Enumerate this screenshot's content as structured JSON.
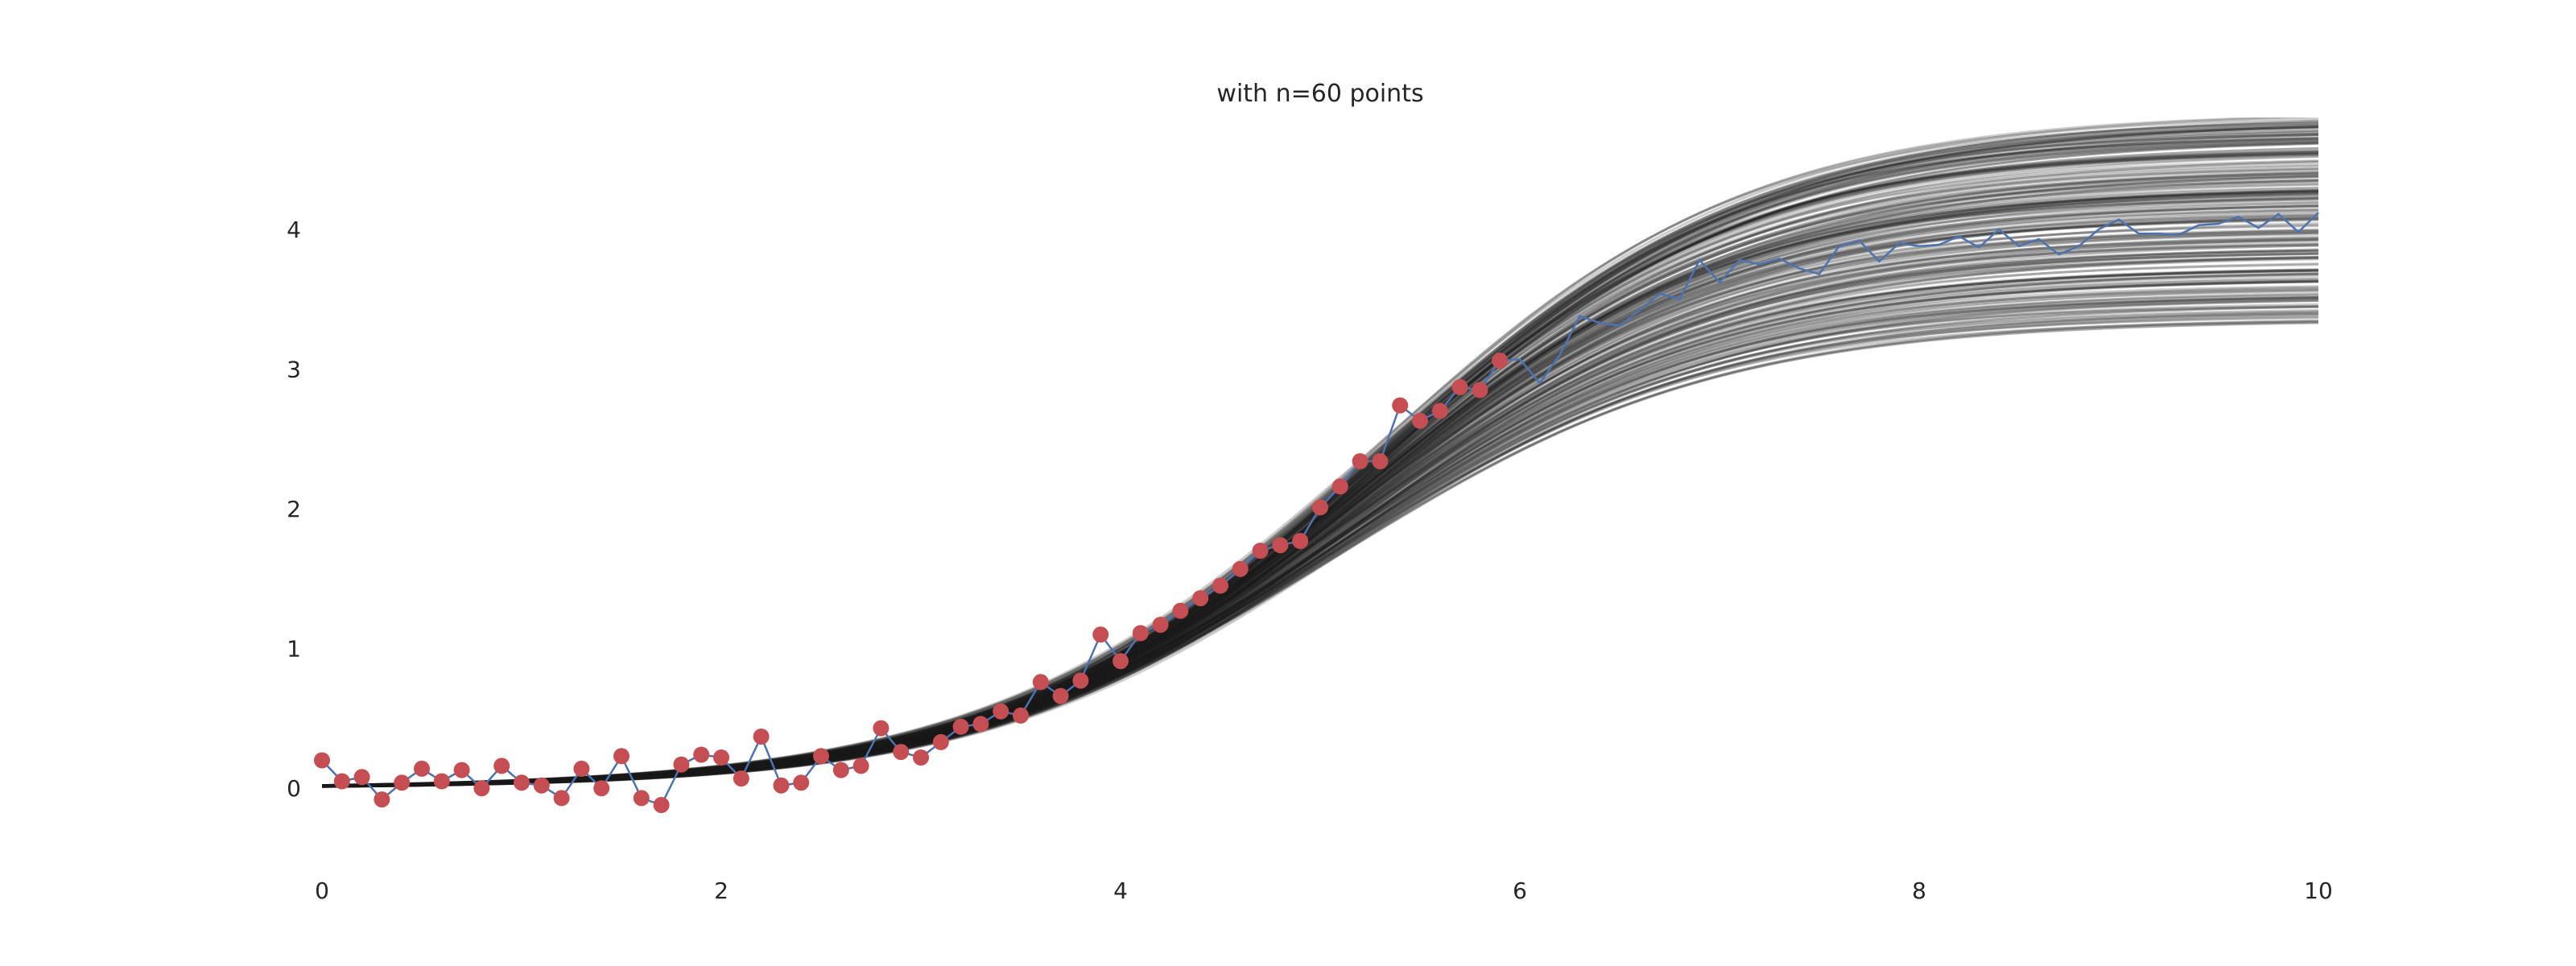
{
  "chart_data": {
    "type": "line",
    "title": "with n=60 points",
    "xlim": [
      0,
      10
    ],
    "ylim": [
      -0.5,
      4.8
    ],
    "x_ticks": [
      {
        "value": 0,
        "label": "0"
      },
      {
        "value": 2,
        "label": "2"
      },
      {
        "value": 4,
        "label": "4"
      },
      {
        "value": 6,
        "label": "6"
      },
      {
        "value": 8,
        "label": "8"
      },
      {
        "value": 10,
        "label": "10"
      }
    ],
    "y_ticks": [
      {
        "value": 0,
        "label": "0"
      },
      {
        "value": 1,
        "label": "1"
      },
      {
        "value": 2,
        "label": "2"
      },
      {
        "value": 3,
        "label": "3"
      },
      {
        "value": 4,
        "label": "4"
      }
    ],
    "grid": false,
    "colors": {
      "posterior_curves": "#1a1a1a",
      "observed_line": "#4c72b0",
      "observed_points": "#c44e52",
      "text": "#262626"
    },
    "posterior_band": {
      "description": "many sampled logistic curves, drawn in translucent black",
      "midpoint_range": [
        5.0,
        5.3
      ],
      "upper_asymptote_range": [
        3.35,
        4.85
      ],
      "steepness_range": [
        1.02,
        1.12
      ]
    },
    "observed_series": {
      "x": [
        0,
        0.1,
        0.2,
        0.3,
        0.4,
        0.5,
        0.6,
        0.7,
        0.8,
        0.9,
        1.0,
        1.1,
        1.2,
        1.3,
        1.4,
        1.5,
        1.6,
        1.7,
        1.8,
        1.9,
        2.0,
        2.1,
        2.2,
        2.3,
        2.4,
        2.5,
        2.6,
        2.7,
        2.8,
        2.9,
        3.0,
        3.1,
        3.2,
        3.3,
        3.4,
        3.5,
        3.6,
        3.7,
        3.8,
        3.9,
        4.0,
        4.1,
        4.2,
        4.3,
        4.4,
        4.5,
        4.6,
        4.7,
        4.8,
        4.9,
        5.0,
        5.1,
        5.2,
        5.3,
        5.4,
        5.5,
        5.6,
        5.7,
        5.8,
        5.9,
        6.0,
        6.1,
        6.2,
        6.3,
        6.4,
        6.5,
        6.6,
        6.7,
        6.8,
        6.9,
        7.0,
        7.1,
        7.2,
        7.3,
        7.4,
        7.5,
        7.6,
        7.7,
        7.8,
        7.9,
        8.0,
        8.1,
        8.2,
        8.3,
        8.4,
        8.5,
        8.6,
        8.7,
        8.8,
        8.9,
        9.0,
        9.1,
        9.2,
        9.3,
        9.4,
        9.5,
        9.6,
        9.7,
        9.8,
        9.9,
        10.0
      ],
      "y": [
        0.2,
        0.05,
        0.08,
        -0.08,
        0.04,
        0.14,
        0.05,
        0.13,
        0.0,
        0.16,
        0.04,
        0.02,
        -0.07,
        0.14,
        0.0,
        0.23,
        -0.07,
        -0.12,
        0.17,
        0.24,
        0.22,
        0.07,
        0.37,
        0.02,
        0.04,
        0.23,
        0.13,
        0.16,
        0.43,
        0.26,
        0.22,
        0.33,
        0.44,
        0.46,
        0.55,
        0.52,
        0.76,
        0.66,
        0.77,
        1.1,
        0.91,
        1.11,
        1.17,
        1.27,
        1.36,
        1.45,
        1.57,
        1.7,
        1.74,
        1.77,
        2.01,
        2.16,
        2.34,
        2.34,
        2.74,
        2.63,
        2.7,
        2.87,
        2.85,
        3.06,
        3.07,
        2.9,
        3.1,
        3.38,
        3.33,
        3.31,
        3.42,
        3.54,
        3.5,
        3.78,
        3.62,
        3.78,
        3.75,
        3.79,
        3.72,
        3.68,
        3.88,
        3.92,
        3.77,
        3.9,
        3.88,
        3.89,
        3.95,
        3.87,
        4.0,
        3.88,
        3.93,
        3.82,
        3.88,
        4.0,
        4.07,
        3.97,
        3.97,
        3.96,
        4.03,
        4.04,
        4.09,
        4.01,
        4.11,
        3.98,
        4.12
      ],
      "marked_points_count": 60
    }
  }
}
